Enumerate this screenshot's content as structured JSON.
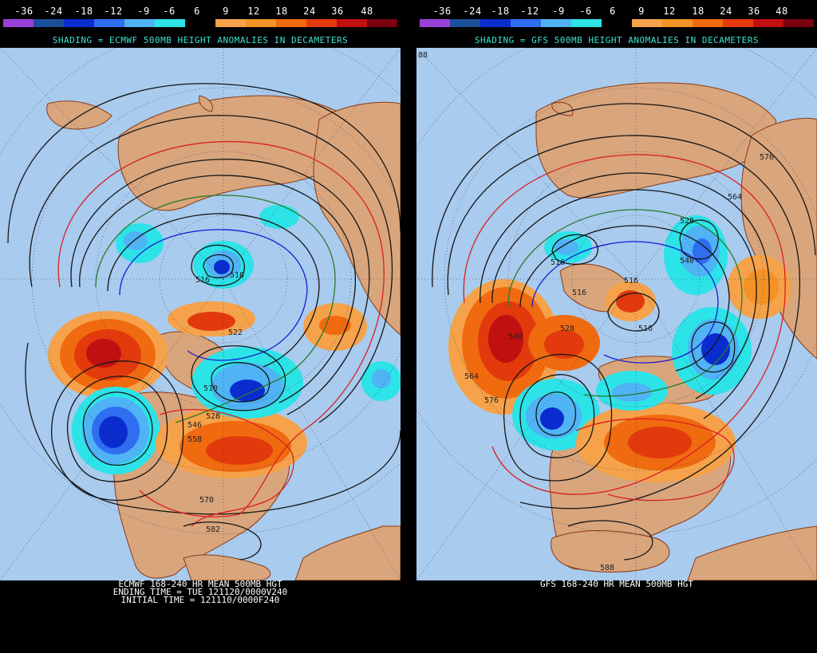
{
  "scale_labels": [
    "-36",
    "-24",
    "-18",
    "-12",
    "-9",
    "-6",
    "6",
    "9",
    "12",
    "18",
    "24",
    "36",
    "48"
  ],
  "scale_colors": [
    "#9b3fd9",
    "#1c4e99",
    "#0a2ccf",
    "#2f6ef0",
    "#4fb3f5",
    "#2ce3e8",
    "#000000",
    "#f5a24a",
    "#f39225",
    "#f06a10",
    "#e23a0c",
    "#c01010",
    "#7a0010"
  ],
  "colors": {
    "ocean": "#a8cbee",
    "land": "#d9a57c",
    "coast": "#8a3a14",
    "contour": "#151515",
    "contour_576": "#d82020",
    "contour_540": "#2a7a2a",
    "contour_516": "#1a1ad0",
    "title": "#3fe0d0"
  },
  "left": {
    "shading_title": "SHADING = ECMWF 500MB HEIGHT ANOMALIES IN DECAMETERS",
    "footer": [
      "ECMWF 168-240 HR MEAN 500MB HGT",
      "ENDING TIME = TUE 121120/0000V240",
      "INITIAL TIME = 121110/0000F240"
    ],
    "contour_labels": [
      "516",
      "516",
      "522",
      "510",
      "546",
      "528",
      "558",
      "570",
      "582"
    ]
  },
  "right": {
    "shading_title": "SHADING = GFS 500MB HEIGHT ANOMALIES IN DECAMETERS",
    "footer": [
      "GFS 168-240 HR MEAN 500MB HGT"
    ],
    "contour_labels": [
      "516",
      "516",
      "528",
      "516",
      "516",
      "540",
      "528",
      "564",
      "576",
      "588",
      "576",
      "540",
      "564",
      "88"
    ]
  }
}
